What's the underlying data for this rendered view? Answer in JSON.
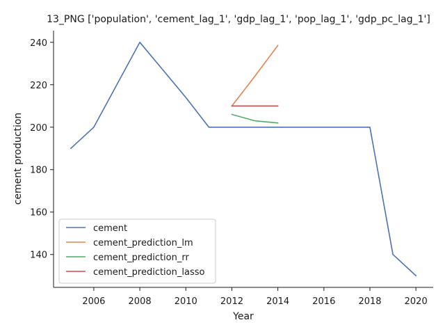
{
  "chart_data": {
    "type": "line",
    "title": "13_PNG ['population', 'cement_lag_1', 'gdp_lag_1', 'pop_lag_1', 'gdp_pc_lag_1']",
    "xlabel": "Year",
    "ylabel": "cement production",
    "xlim": [
      2004.25,
      2020.75
    ],
    "ylim": [
      124.5,
      245.5
    ],
    "xticks": [
      2006,
      2008,
      2010,
      2012,
      2014,
      2016,
      2018,
      2020
    ],
    "yticks": [
      140,
      160,
      180,
      200,
      220,
      240
    ],
    "grid": false,
    "legend_position": "lower-left",
    "series": [
      {
        "name": "cement",
        "color": "#4c72b0",
        "x": [
          2005,
          2006,
          2007,
          2008,
          2009,
          2010,
          2011,
          2012,
          2013,
          2014,
          2015,
          2016,
          2017,
          2018,
          2019,
          2020
        ],
        "y": [
          190,
          200,
          220,
          240,
          227,
          214,
          200,
          200,
          200,
          200,
          200,
          200,
          200,
          200,
          140,
          130
        ]
      },
      {
        "name": "cement_prediction_lm",
        "color": "#dd8452",
        "x": [
          2012,
          2013,
          2014
        ],
        "y": [
          210,
          224,
          238.5
        ]
      },
      {
        "name": "cement_prediction_rr",
        "color": "#55a868",
        "x": [
          2012,
          2013,
          2014
        ],
        "y": [
          206,
          203,
          202
        ]
      },
      {
        "name": "cement_prediction_lasso",
        "color": "#c44e52",
        "x": [
          2012,
          2013,
          2014
        ],
        "y": [
          210,
          210,
          210
        ]
      }
    ]
  }
}
